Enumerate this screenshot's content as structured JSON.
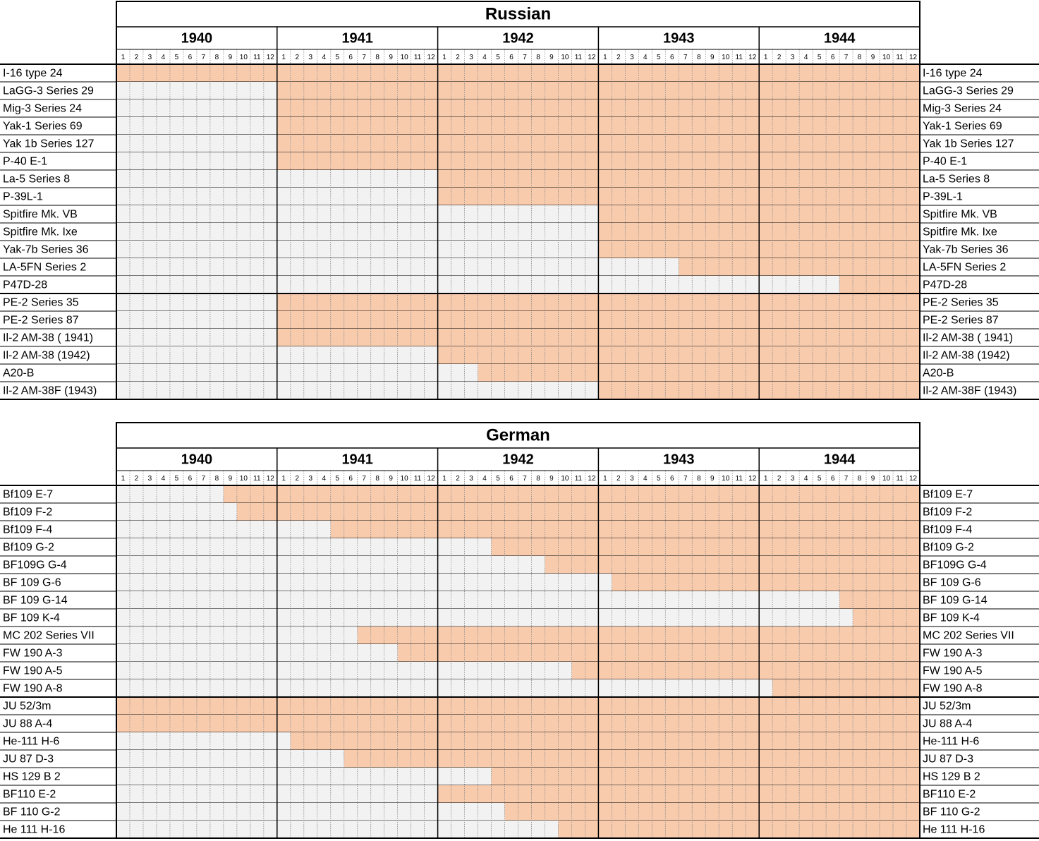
{
  "sections": [
    {
      "title": "Russian",
      "years": [
        1940,
        1941,
        1942,
        1943,
        1944
      ],
      "months": [
        1,
        2,
        3,
        4,
        5,
        6,
        7,
        8,
        9,
        10,
        11,
        12
      ],
      "groups": [
        [
          {
            "name": "I-16 type 24",
            "start": {
              "year": 1940,
              "month": 1
            }
          },
          {
            "name": "LaGG-3 Series 29",
            "start": {
              "year": 1941,
              "month": 1
            }
          },
          {
            "name": "Mig-3 Series 24",
            "start": {
              "year": 1941,
              "month": 1
            }
          },
          {
            "name": "Yak-1 Series 69",
            "start": {
              "year": 1941,
              "month": 1
            }
          },
          {
            "name": "Yak 1b Series 127",
            "start": {
              "year": 1941,
              "month": 1
            }
          },
          {
            "name": "P-40 E-1",
            "start": {
              "year": 1941,
              "month": 1
            }
          },
          {
            "name": "La-5 Series 8",
            "start": {
              "year": 1942,
              "month": 1
            }
          },
          {
            "name": "P-39L-1",
            "start": {
              "year": 1942,
              "month": 1
            }
          },
          {
            "name": "Spitfire Mk. VB",
            "start": {
              "year": 1943,
              "month": 1
            }
          },
          {
            "name": "Spitfire Mk. Ixe",
            "start": {
              "year": 1943,
              "month": 1
            }
          },
          {
            "name": "Yak-7b Series 36",
            "start": {
              "year": 1943,
              "month": 1
            }
          },
          {
            "name": "LA-5FN Series 2",
            "start": {
              "year": 1943,
              "month": 7
            }
          },
          {
            "name": "P47D-28",
            "start": {
              "year": 1944,
              "month": 7
            }
          }
        ],
        [
          {
            "name": "PE-2 Series 35",
            "start": {
              "year": 1941,
              "month": 1
            }
          },
          {
            "name": "PE-2 Series 87",
            "start": {
              "year": 1941,
              "month": 1
            }
          },
          {
            "name": "Il-2 AM-38 ( 1941)",
            "start": {
              "year": 1941,
              "month": 1
            }
          },
          {
            "name": "Il-2 AM-38 (1942)",
            "start": {
              "year": 1942,
              "month": 1
            }
          },
          {
            "name": "A20-B",
            "start": {
              "year": 1942,
              "month": 4
            }
          },
          {
            "name": "Il-2 AM-38F (1943)",
            "start": {
              "year": 1943,
              "month": 1
            }
          }
        ]
      ]
    },
    {
      "title": "German",
      "years": [
        1940,
        1941,
        1942,
        1943,
        1944
      ],
      "months": [
        1,
        2,
        3,
        4,
        5,
        6,
        7,
        8,
        9,
        10,
        11,
        12
      ],
      "groups": [
        [
          {
            "name": "Bf109 E-7",
            "start": {
              "year": 1940,
              "month": 9
            }
          },
          {
            "name": "Bf109 F-2",
            "start": {
              "year": 1940,
              "month": 10
            }
          },
          {
            "name": "Bf109 F-4",
            "start": {
              "year": 1941,
              "month": 5
            }
          },
          {
            "name": "Bf109 G-2",
            "start": {
              "year": 1942,
              "month": 5
            }
          },
          {
            "name": "BF109G G-4",
            "start": {
              "year": 1942,
              "month": 9
            }
          },
          {
            "name": "BF 109 G-6",
            "start": {
              "year": 1943,
              "month": 2
            }
          },
          {
            "name": "BF 109 G-14",
            "start": {
              "year": 1944,
              "month": 7
            }
          },
          {
            "name": "BF 109 K-4",
            "start": {
              "year": 1944,
              "month": 8
            }
          },
          {
            "name": "MC 202 Series VII",
            "start": {
              "year": 1941,
              "month": 7
            }
          },
          {
            "name": "FW 190 A-3",
            "start": {
              "year": 1941,
              "month": 10
            }
          },
          {
            "name": "FW 190 A-5",
            "start": {
              "year": 1942,
              "month": 11
            }
          },
          {
            "name": "FW 190 A-8",
            "start": {
              "year": 1944,
              "month": 2
            }
          }
        ],
        [
          {
            "name": "JU 52/3m",
            "start": {
              "year": 1940,
              "month": 1
            }
          },
          {
            "name": "JU 88 A-4",
            "start": {
              "year": 1940,
              "month": 1
            }
          },
          {
            "name": "He-111 H-6",
            "start": {
              "year": 1941,
              "month": 2
            }
          },
          {
            "name": "JU 87 D-3",
            "start": {
              "year": 1941,
              "month": 6
            }
          },
          {
            "name": "HS 129 B 2",
            "start": {
              "year": 1942,
              "month": 5
            }
          },
          {
            "name": "BF110 E-2",
            "start": {
              "year": 1942,
              "month": 1
            }
          },
          {
            "name": "BF 110 G-2",
            "start": {
              "year": 1942,
              "month": 6
            }
          },
          {
            "name": "He 111 H-16",
            "start": {
              "year": 1942,
              "month": 10
            }
          }
        ]
      ]
    }
  ]
}
